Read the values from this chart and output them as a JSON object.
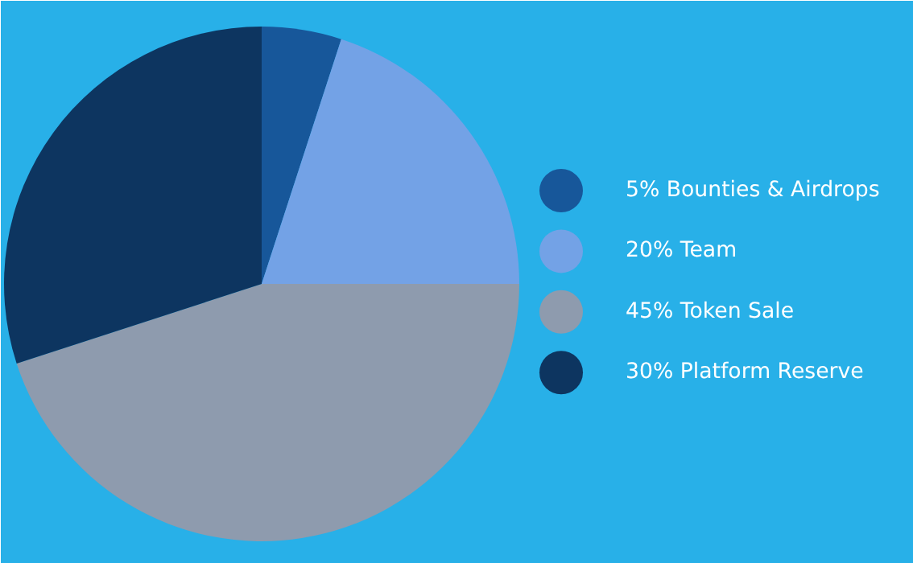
{
  "chart_data": {
    "type": "pie",
    "categories": [
      "5% Bounties & Airdrops",
      "20% Team",
      "45% Token Sale",
      "30% Platform Reserve"
    ],
    "values": [
      5,
      20,
      45,
      30
    ],
    "colors": [
      "#17579a",
      "#73a2e6",
      "#8e9bae",
      "#0d3560"
    ],
    "legend": "right"
  }
}
